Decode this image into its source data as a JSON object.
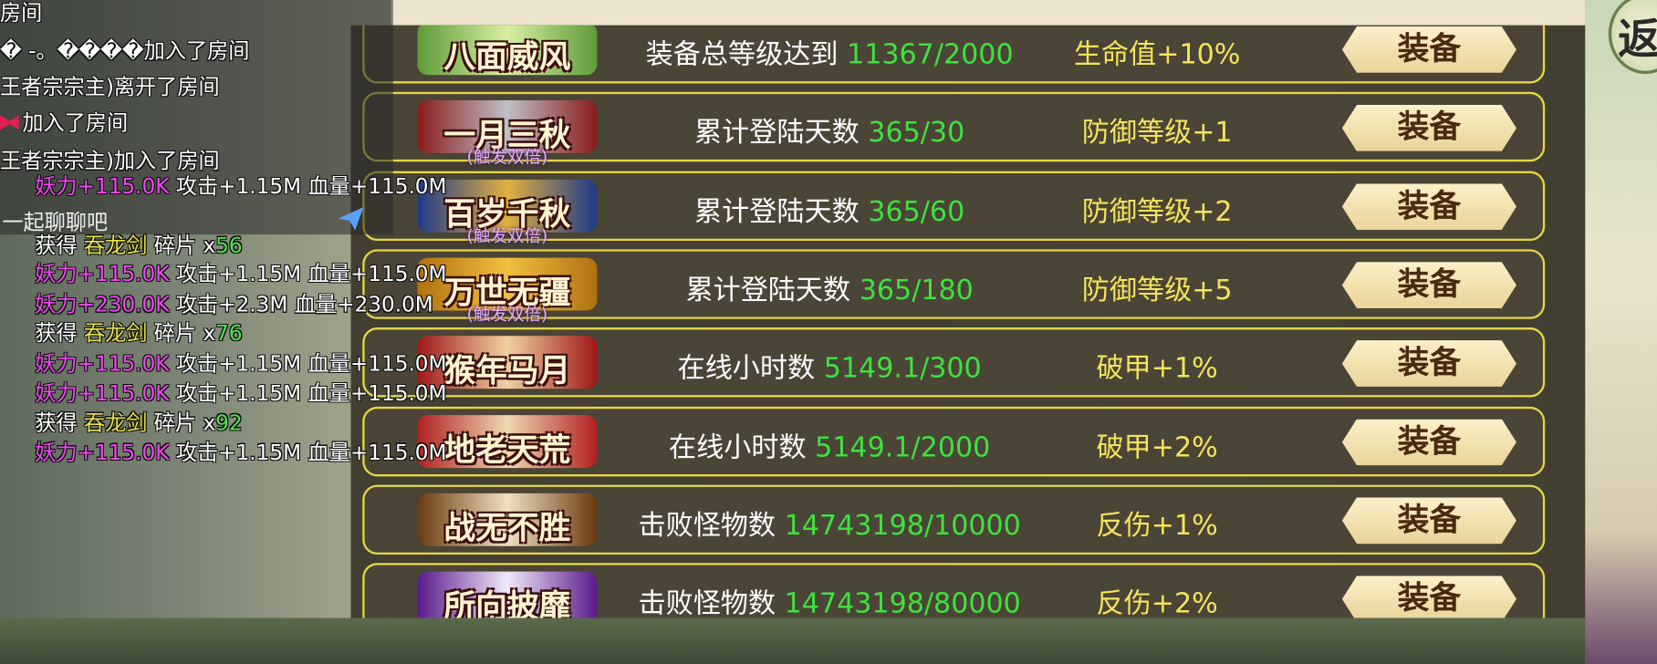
{
  "return_button": "返",
  "chat": {
    "input_placeholder": "一起聊聊吧",
    "lines": [
      {
        "text": "房间"
      },
      {
        "text": "� -。����加入了房间"
      },
      {
        "text": "王者宗宗主)离开了房间"
      },
      {
        "text": "加入了房间"
      },
      {
        "text": "王者宗宗主)加入了房间"
      },
      {
        "power": "妖力+115.0K",
        "attack": "攻击+1.15M",
        "hp": "血量+115.0M"
      },
      {
        "verb": "获得",
        "item": "吞龙剑",
        "unit": "碎片 x",
        "count": 56
      },
      {
        "power": "妖力+115.0K",
        "attack": "攻击+1.15M",
        "hp": "血量+115.0M"
      },
      {
        "power": "妖力+230.0K",
        "attack": "攻击+2.3M",
        "hp": "血量+230.0M"
      },
      {
        "verb": "获得",
        "item": "吞龙剑",
        "unit": "碎片 x",
        "count": 76
      },
      {
        "power": "妖力+115.0K",
        "attack": "攻击+1.15M",
        "hp": "血量+115.0M"
      },
      {
        "power": "妖力+115.0K",
        "attack": "攻击+1.15M",
        "hp": "血量+115.0M"
      },
      {
        "verb": "获得",
        "item": "吞龙剑",
        "unit": "碎片 x",
        "count": 92
      },
      {
        "power": "妖力+115.0K",
        "attack": "攻击+1.15M",
        "hp": "血量+115.0M"
      }
    ]
  },
  "titles": [
    {
      "badge": "八面威风",
      "condition": "装备总等级达到",
      "progress": "11367/2000",
      "reward": "生命值+10%",
      "button": "装备"
    },
    {
      "badge": "一月三秋",
      "tag": "(触发双倍)",
      "condition": "累计登陆天数",
      "progress": "365/30",
      "reward": "防御等级+1",
      "button": "装备"
    },
    {
      "badge": "百岁千秋",
      "tag": "(触发双倍)",
      "condition": "累计登陆天数",
      "progress": "365/60",
      "reward": "防御等级+2",
      "button": "装备"
    },
    {
      "badge": "万世无疆",
      "tag": "(触发双倍)",
      "condition": "累计登陆天数",
      "progress": "365/180",
      "reward": "防御等级+5",
      "button": "装备"
    },
    {
      "badge": "猴年马月",
      "condition": "在线小时数",
      "progress": "5149.1/300",
      "reward": "破甲+1%",
      "button": "装备"
    },
    {
      "badge": "地老天荒",
      "condition": "在线小时数",
      "progress": "5149.1/2000",
      "reward": "破甲+2%",
      "button": "装备"
    },
    {
      "badge": "战无不胜",
      "condition": "击败怪物数",
      "progress": "14743198/10000",
      "reward": "反伤+1%",
      "button": "装备"
    },
    {
      "badge": "所向披靡",
      "condition": "击败怪物数",
      "progress": "14743198/80000",
      "reward": "反伤+2%",
      "button": "装备"
    }
  ]
}
